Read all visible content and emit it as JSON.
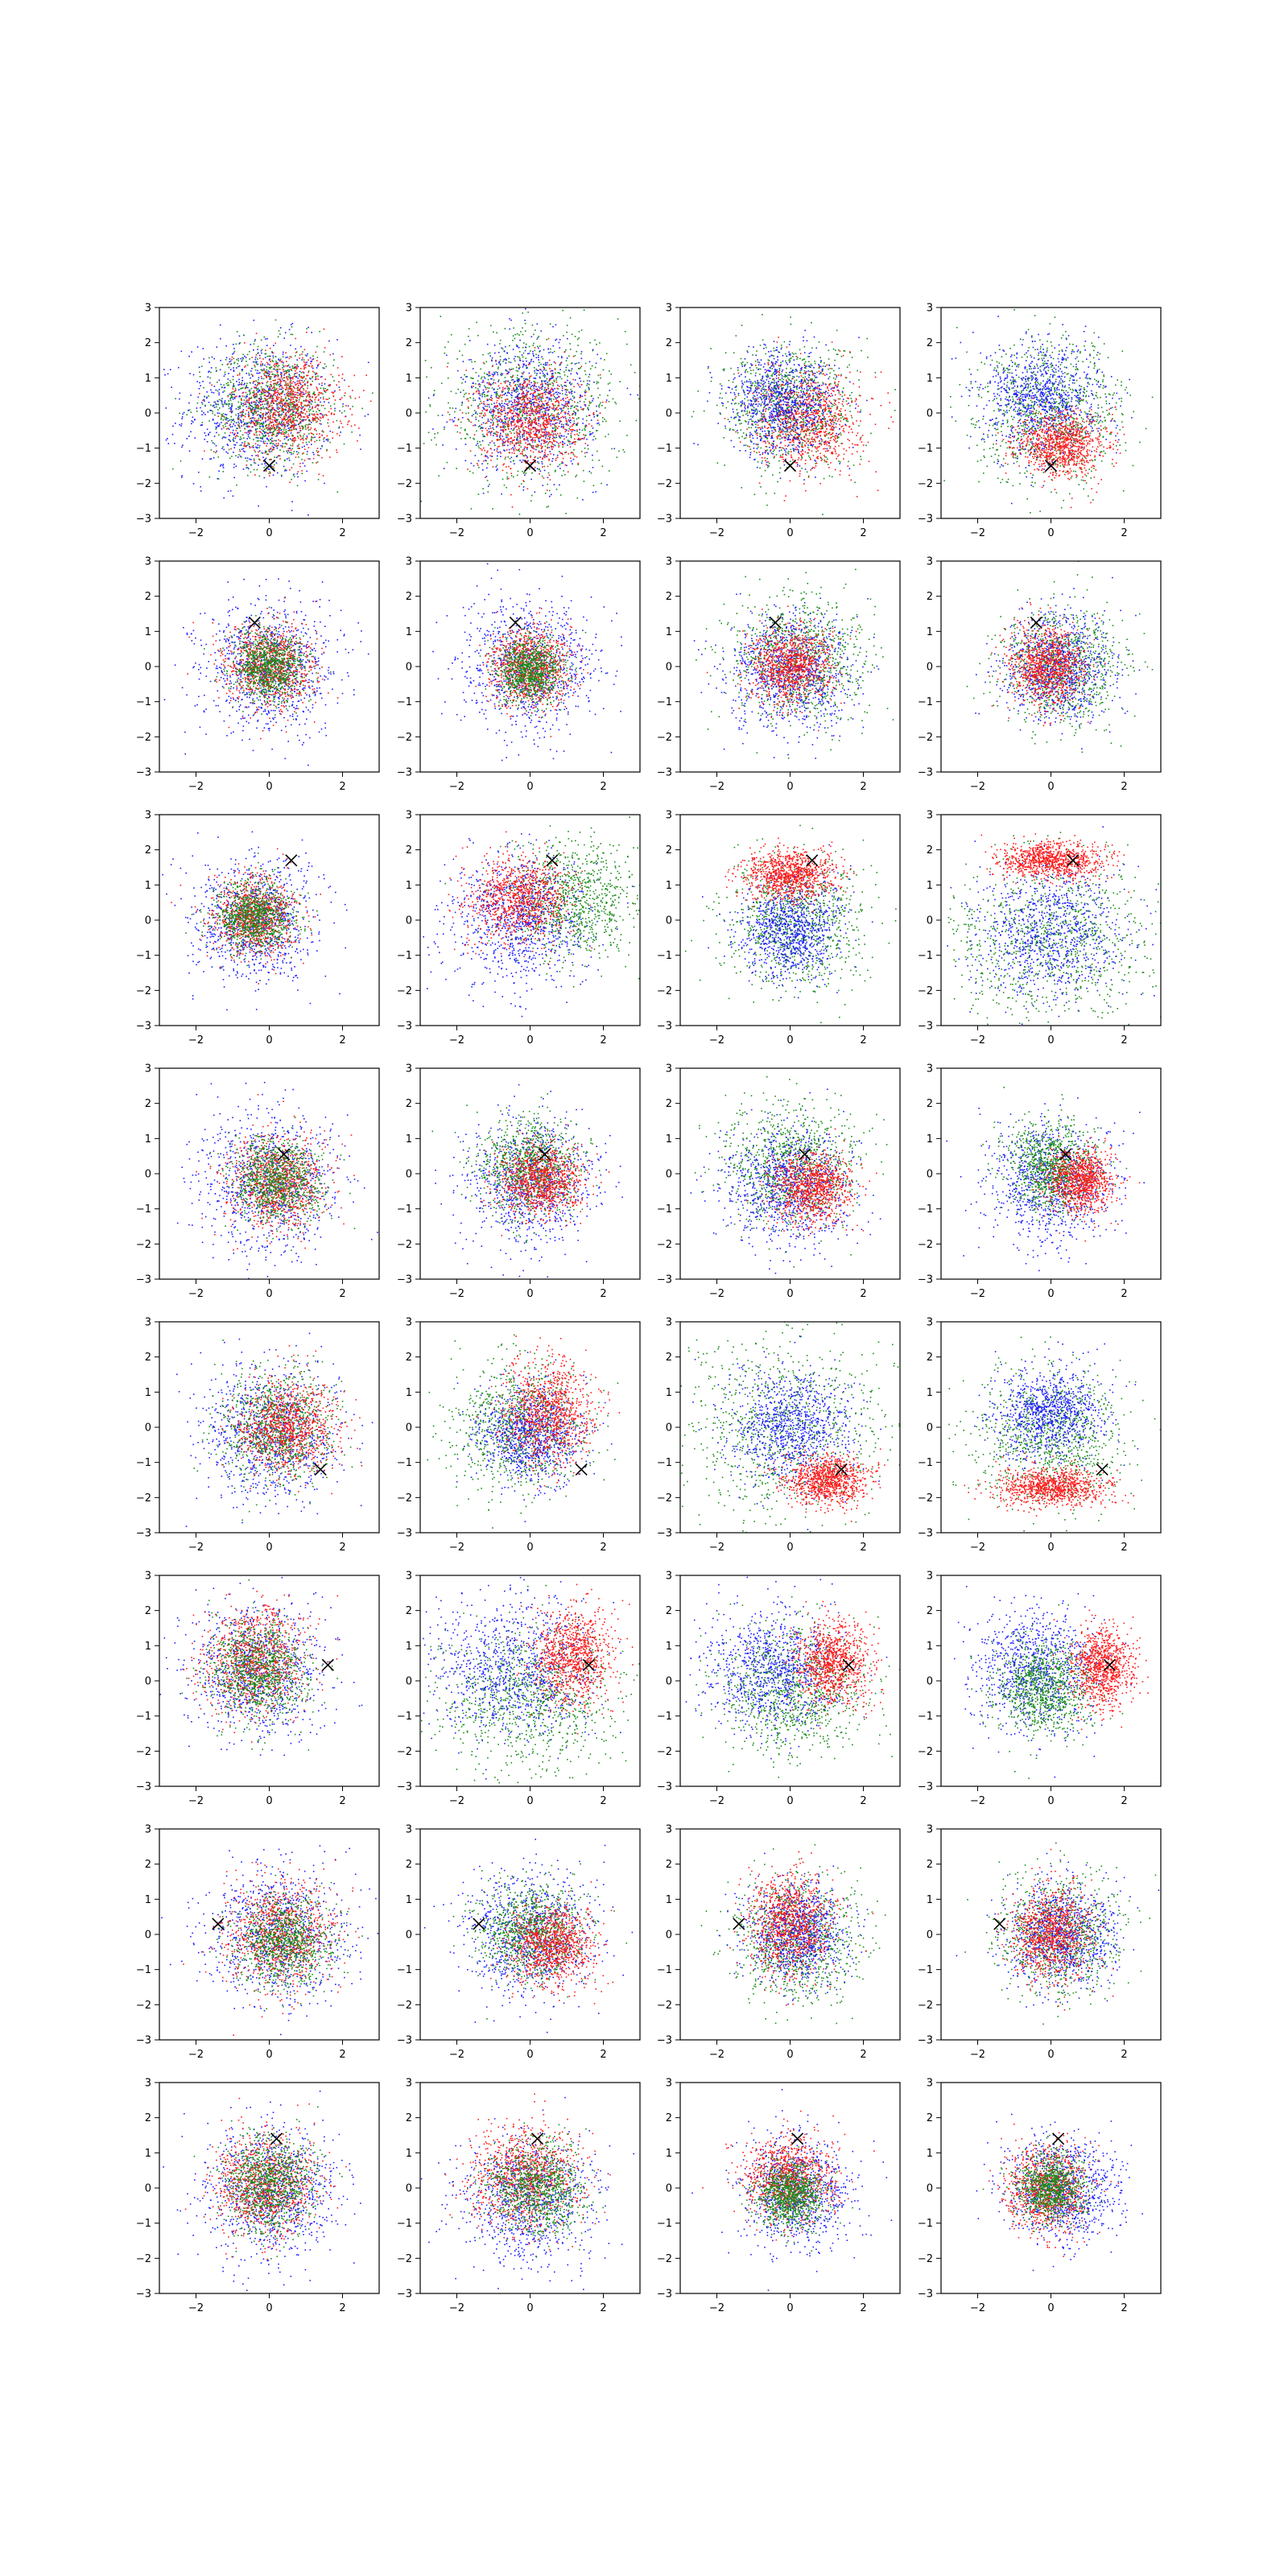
{
  "figure": {
    "rows": 8,
    "cols": 4,
    "background": "#ffffff"
  },
  "colors": {
    "blue": "#1f1fff",
    "green": "#1a8c1a",
    "red": "#ff1a1a",
    "marker": "#000000"
  },
  "chart_data": {
    "type": "scatter",
    "title": "",
    "xlabel": "",
    "ylabel": "",
    "xlim": [
      -3,
      3
    ],
    "ylim": [
      -3,
      3
    ],
    "xticks": [
      -2,
      0,
      2
    ],
    "yticks": [
      -3,
      -2,
      -1,
      0,
      1,
      2,
      3
    ],
    "xtick_labels": [
      "−2",
      "0",
      "2"
    ],
    "ytick_labels": [
      "−3",
      "−2",
      "−1",
      "0",
      "1",
      "2",
      "3"
    ],
    "grid": false,
    "legend": "none",
    "marker_symbol": "×",
    "points_per_series": 900,
    "panels": [
      {
        "row": 0,
        "col": 0,
        "marker": [
          0.0,
          -1.5
        ],
        "series": [
          {
            "color": "blue",
            "cx": -0.3,
            "cy": 0.1,
            "sx": 1.0,
            "sy": 1.0
          },
          {
            "color": "green",
            "cx": 0.1,
            "cy": 0.2,
            "sx": 0.85,
            "sy": 0.85
          },
          {
            "color": "red",
            "cx": 0.5,
            "cy": 0.2,
            "sx": 0.75,
            "sy": 0.75
          }
        ]
      },
      {
        "row": 0,
        "col": 1,
        "marker": [
          0.0,
          -1.5
        ],
        "series": [
          {
            "color": "green",
            "cx": 0.0,
            "cy": 0.2,
            "sx": 1.25,
            "sy": 1.1
          },
          {
            "color": "blue",
            "cx": 0.0,
            "cy": 0.2,
            "sx": 0.9,
            "sy": 0.9
          },
          {
            "color": "red",
            "cx": 0.0,
            "cy": -0.2,
            "sx": 0.7,
            "sy": 0.7
          }
        ]
      },
      {
        "row": 0,
        "col": 2,
        "marker": [
          0.0,
          -1.5
        ],
        "series": [
          {
            "color": "green",
            "cx": 0.0,
            "cy": 0.2,
            "sx": 0.9,
            "sy": 0.9
          },
          {
            "color": "red",
            "cx": 0.5,
            "cy": -0.2,
            "sx": 0.7,
            "sy": 0.7
          },
          {
            "color": "blue",
            "cx": -0.2,
            "cy": 0.3,
            "sx": 0.75,
            "sy": 0.75
          }
        ]
      },
      {
        "row": 0,
        "col": 3,
        "marker": [
          0.0,
          -1.5
        ],
        "series": [
          {
            "color": "green",
            "cx": 0.0,
            "cy": 0.0,
            "sx": 1.0,
            "sy": 1.0
          },
          {
            "color": "blue",
            "cx": -0.2,
            "cy": 0.4,
            "sx": 0.8,
            "sy": 0.8
          },
          {
            "color": "red",
            "cx": 0.3,
            "cy": -0.9,
            "sx": 0.6,
            "sy": 0.45
          }
        ]
      },
      {
        "row": 1,
        "col": 0,
        "marker": [
          -0.4,
          1.25
        ],
        "series": [
          {
            "color": "blue",
            "cx": 0.0,
            "cy": 0.0,
            "sx": 0.9,
            "sy": 0.9
          },
          {
            "color": "red",
            "cx": 0.0,
            "cy": 0.0,
            "sx": 0.6,
            "sy": 0.6
          },
          {
            "color": "green",
            "cx": 0.0,
            "cy": 0.0,
            "sx": 0.5,
            "sy": 0.5
          }
        ]
      },
      {
        "row": 1,
        "col": 1,
        "marker": [
          -0.4,
          1.25
        ],
        "series": [
          {
            "color": "blue",
            "cx": 0.0,
            "cy": 0.0,
            "sx": 0.9,
            "sy": 0.9
          },
          {
            "color": "red",
            "cx": 0.0,
            "cy": 0.0,
            "sx": 0.55,
            "sy": 0.55
          },
          {
            "color": "green",
            "cx": 0.0,
            "cy": -0.1,
            "sx": 0.45,
            "sy": 0.45
          }
        ]
      },
      {
        "row": 1,
        "col": 2,
        "marker": [
          -0.4,
          1.25
        ],
        "series": [
          {
            "color": "green",
            "cx": 0.2,
            "cy": 0.2,
            "sx": 0.9,
            "sy": 0.9
          },
          {
            "color": "blue",
            "cx": 0.0,
            "cy": -0.2,
            "sx": 0.85,
            "sy": 0.85
          },
          {
            "color": "red",
            "cx": 0.0,
            "cy": 0.0,
            "sx": 0.55,
            "sy": 0.55
          }
        ]
      },
      {
        "row": 1,
        "col": 3,
        "marker": [
          -0.4,
          1.25
        ],
        "series": [
          {
            "color": "green",
            "cx": 0.3,
            "cy": 0.0,
            "sx": 0.8,
            "sy": 0.8
          },
          {
            "color": "blue",
            "cx": 0.2,
            "cy": 0.0,
            "sx": 0.75,
            "sy": 0.75
          },
          {
            "color": "red",
            "cx": -0.1,
            "cy": 0.0,
            "sx": 0.5,
            "sy": 0.55
          }
        ]
      },
      {
        "row": 2,
        "col": 0,
        "marker": [
          0.6,
          1.7
        ],
        "series": [
          {
            "color": "blue",
            "cx": -0.4,
            "cy": 0.0,
            "sx": 0.85,
            "sy": 0.85
          },
          {
            "color": "red",
            "cx": -0.4,
            "cy": 0.1,
            "sx": 0.55,
            "sy": 0.55
          },
          {
            "color": "green",
            "cx": -0.4,
            "cy": 0.1,
            "sx": 0.5,
            "sy": 0.5
          }
        ]
      },
      {
        "row": 2,
        "col": 1,
        "marker": [
          0.6,
          1.7
        ],
        "series": [
          {
            "color": "green",
            "cx": 1.2,
            "cy": 0.5,
            "sx": 0.9,
            "sy": 0.8
          },
          {
            "color": "blue",
            "cx": -0.3,
            "cy": 0.0,
            "sx": 0.95,
            "sy": 0.95
          },
          {
            "color": "red",
            "cx": -0.3,
            "cy": 0.6,
            "sx": 0.7,
            "sy": 0.6
          }
        ]
      },
      {
        "row": 2,
        "col": 2,
        "marker": [
          0.6,
          1.7
        ],
        "series": [
          {
            "color": "green",
            "cx": 0.2,
            "cy": 0.0,
            "sx": 0.95,
            "sy": 0.95
          },
          {
            "color": "blue",
            "cx": 0.0,
            "cy": -0.3,
            "sx": 0.7,
            "sy": 0.7
          },
          {
            "color": "red",
            "cx": 0.0,
            "cy": 1.3,
            "sx": 0.6,
            "sy": 0.35
          }
        ]
      },
      {
        "row": 2,
        "col": 3,
        "marker": [
          0.6,
          1.7
        ],
        "series": [
          {
            "color": "green",
            "cx": 0.0,
            "cy": -0.5,
            "sx": 1.4,
            "sy": 1.1
          },
          {
            "color": "blue",
            "cx": 0.0,
            "cy": -0.3,
            "sx": 1.0,
            "sy": 0.95
          },
          {
            "color": "red",
            "cx": 0.0,
            "cy": 1.7,
            "sx": 0.7,
            "sy": 0.25
          }
        ]
      },
      {
        "row": 3,
        "col": 0,
        "marker": [
          0.4,
          0.55
        ],
        "series": [
          {
            "color": "blue",
            "cx": 0.0,
            "cy": -0.3,
            "sx": 0.95,
            "sy": 0.95
          },
          {
            "color": "red",
            "cx": 0.2,
            "cy": -0.3,
            "sx": 0.65,
            "sy": 0.65
          },
          {
            "color": "green",
            "cx": 0.2,
            "cy": -0.2,
            "sx": 0.6,
            "sy": 0.6
          }
        ]
      },
      {
        "row": 3,
        "col": 1,
        "marker": [
          0.4,
          0.55
        ],
        "series": [
          {
            "color": "blue",
            "cx": 0.0,
            "cy": -0.3,
            "sx": 0.9,
            "sy": 0.9
          },
          {
            "color": "green",
            "cx": 0.0,
            "cy": 0.2,
            "sx": 0.7,
            "sy": 0.7
          },
          {
            "color": "red",
            "cx": 0.3,
            "cy": -0.2,
            "sx": 0.55,
            "sy": 0.5
          }
        ]
      },
      {
        "row": 3,
        "col": 2,
        "marker": [
          0.4,
          0.55
        ],
        "series": [
          {
            "color": "green",
            "cx": 0.0,
            "cy": 0.2,
            "sx": 0.9,
            "sy": 0.85
          },
          {
            "color": "blue",
            "cx": 0.0,
            "cy": -0.4,
            "sx": 0.85,
            "sy": 0.85
          },
          {
            "color": "red",
            "cx": 0.6,
            "cy": -0.4,
            "sx": 0.55,
            "sy": 0.5
          }
        ]
      },
      {
        "row": 3,
        "col": 3,
        "marker": [
          0.4,
          0.55
        ],
        "series": [
          {
            "color": "blue",
            "cx": 0.0,
            "cy": -0.3,
            "sx": 0.85,
            "sy": 0.85
          },
          {
            "color": "green",
            "cx": 0.0,
            "cy": 0.2,
            "sx": 0.6,
            "sy": 0.6
          },
          {
            "color": "red",
            "cx": 0.8,
            "cy": -0.2,
            "sx": 0.45,
            "sy": 0.45
          }
        ]
      },
      {
        "row": 4,
        "col": 0,
        "marker": [
          1.4,
          -1.2
        ],
        "series": [
          {
            "color": "blue",
            "cx": 0.0,
            "cy": -0.2,
            "sx": 0.95,
            "sy": 0.95
          },
          {
            "color": "green",
            "cx": 0.2,
            "cy": 0.0,
            "sx": 0.75,
            "sy": 0.75
          },
          {
            "color": "red",
            "cx": 0.5,
            "cy": 0.0,
            "sx": 0.65,
            "sy": 0.65
          }
        ]
      },
      {
        "row": 4,
        "col": 1,
        "marker": [
          1.4,
          -1.2
        ],
        "series": [
          {
            "color": "green",
            "cx": -0.3,
            "cy": 0.0,
            "sx": 0.9,
            "sy": 0.9
          },
          {
            "color": "blue",
            "cx": 0.0,
            "cy": -0.2,
            "sx": 0.7,
            "sy": 0.7
          },
          {
            "color": "red",
            "cx": 0.5,
            "cy": 0.4,
            "sx": 0.6,
            "sy": 0.75
          }
        ]
      },
      {
        "row": 4,
        "col": 2,
        "marker": [
          1.4,
          -1.2
        ],
        "series": [
          {
            "color": "green",
            "cx": -0.2,
            "cy": 0.0,
            "sx": 1.4,
            "sy": 1.3
          },
          {
            "color": "blue",
            "cx": 0.0,
            "cy": 0.0,
            "sx": 0.85,
            "sy": 0.85
          },
          {
            "color": "red",
            "cx": 1.0,
            "cy": -1.5,
            "sx": 0.55,
            "sy": 0.35
          }
        ]
      },
      {
        "row": 4,
        "col": 3,
        "marker": [
          1.4,
          -1.2
        ],
        "series": [
          {
            "color": "green",
            "cx": 0.0,
            "cy": -0.3,
            "sx": 1.0,
            "sy": 1.0
          },
          {
            "color": "blue",
            "cx": 0.0,
            "cy": 0.4,
            "sx": 0.75,
            "sy": 0.65
          },
          {
            "color": "red",
            "cx": 0.0,
            "cy": -1.7,
            "sx": 0.75,
            "sy": 0.28
          }
        ]
      },
      {
        "row": 5,
        "col": 0,
        "marker": [
          1.6,
          0.45
        ],
        "series": [
          {
            "color": "blue",
            "cx": -0.3,
            "cy": 0.3,
            "sx": 0.95,
            "sy": 0.95
          },
          {
            "color": "red",
            "cx": -0.4,
            "cy": 0.6,
            "sx": 0.7,
            "sy": 0.75
          },
          {
            "color": "green",
            "cx": -0.3,
            "cy": 0.3,
            "sx": 0.65,
            "sy": 0.7
          }
        ]
      },
      {
        "row": 5,
        "col": 1,
        "marker": [
          1.6,
          0.45
        ],
        "series": [
          {
            "color": "green",
            "cx": 0.0,
            "cy": -0.5,
            "sx": 1.2,
            "sy": 1.0
          },
          {
            "color": "blue",
            "cx": -0.5,
            "cy": 0.3,
            "sx": 1.1,
            "sy": 1.0
          },
          {
            "color": "red",
            "cx": 1.2,
            "cy": 0.7,
            "sx": 0.55,
            "sy": 0.65
          }
        ]
      },
      {
        "row": 5,
        "col": 2,
        "marker": [
          1.6,
          0.45
        ],
        "series": [
          {
            "color": "green",
            "cx": 0.0,
            "cy": -0.3,
            "sx": 1.0,
            "sy": 0.9
          },
          {
            "color": "blue",
            "cx": -0.5,
            "cy": 0.3,
            "sx": 0.9,
            "sy": 0.85
          },
          {
            "color": "red",
            "cx": 1.2,
            "cy": 0.5,
            "sx": 0.5,
            "sy": 0.6
          }
        ]
      },
      {
        "row": 5,
        "col": 3,
        "marker": [
          1.6,
          0.45
        ],
        "series": [
          {
            "color": "blue",
            "cx": -0.4,
            "cy": 0.3,
            "sx": 0.85,
            "sy": 0.85
          },
          {
            "color": "green",
            "cx": -0.2,
            "cy": -0.2,
            "sx": 0.65,
            "sy": 0.65
          },
          {
            "color": "red",
            "cx": 1.4,
            "cy": 0.4,
            "sx": 0.4,
            "sy": 0.55
          }
        ]
      },
      {
        "row": 6,
        "col": 0,
        "marker": [
          -1.4,
          0.3
        ],
        "series": [
          {
            "color": "blue",
            "cx": 0.2,
            "cy": 0.0,
            "sx": 1.0,
            "sy": 0.95
          },
          {
            "color": "red",
            "cx": 0.3,
            "cy": 0.0,
            "sx": 0.7,
            "sy": 0.75
          },
          {
            "color": "green",
            "cx": 0.4,
            "cy": -0.2,
            "sx": 0.65,
            "sy": 0.6
          }
        ]
      },
      {
        "row": 6,
        "col": 1,
        "marker": [
          -1.4,
          0.3
        ],
        "series": [
          {
            "color": "blue",
            "cx": 0.0,
            "cy": 0.0,
            "sx": 0.9,
            "sy": 0.9
          },
          {
            "color": "green",
            "cx": 0.0,
            "cy": 0.1,
            "sx": 0.7,
            "sy": 0.7
          },
          {
            "color": "red",
            "cx": 0.6,
            "cy": -0.3,
            "sx": 0.6,
            "sy": 0.55
          }
        ]
      },
      {
        "row": 6,
        "col": 2,
        "marker": [
          -1.4,
          0.3
        ],
        "series": [
          {
            "color": "green",
            "cx": 0.2,
            "cy": -0.1,
            "sx": 0.85,
            "sy": 0.85
          },
          {
            "color": "blue",
            "cx": 0.2,
            "cy": 0.0,
            "sx": 0.7,
            "sy": 0.7
          },
          {
            "color": "red",
            "cx": 0.0,
            "cy": 0.3,
            "sx": 0.55,
            "sy": 0.75
          }
        ]
      },
      {
        "row": 6,
        "col": 3,
        "marker": [
          -1.4,
          0.3
        ],
        "series": [
          {
            "color": "green",
            "cx": 0.2,
            "cy": 0.0,
            "sx": 0.8,
            "sy": 0.8
          },
          {
            "color": "blue",
            "cx": 0.3,
            "cy": 0.0,
            "sx": 0.75,
            "sy": 0.75
          },
          {
            "color": "red",
            "cx": 0.0,
            "cy": 0.0,
            "sx": 0.55,
            "sy": 0.65
          }
        ]
      },
      {
        "row": 7,
        "col": 0,
        "marker": [
          0.2,
          1.4
        ],
        "series": [
          {
            "color": "blue",
            "cx": 0.0,
            "cy": -0.1,
            "sx": 0.95,
            "sy": 0.95
          },
          {
            "color": "red",
            "cx": -0.1,
            "cy": 0.1,
            "sx": 0.7,
            "sy": 0.7
          },
          {
            "color": "green",
            "cx": 0.0,
            "cy": 0.1,
            "sx": 0.6,
            "sy": 0.65
          }
        ]
      },
      {
        "row": 7,
        "col": 1,
        "marker": [
          0.2,
          1.4
        ],
        "series": [
          {
            "color": "blue",
            "cx": 0.0,
            "cy": -0.3,
            "sx": 0.95,
            "sy": 0.9
          },
          {
            "color": "red",
            "cx": -0.1,
            "cy": 0.3,
            "sx": 0.75,
            "sy": 0.7
          },
          {
            "color": "green",
            "cx": 0.2,
            "cy": 0.0,
            "sx": 0.65,
            "sy": 0.65
          }
        ]
      },
      {
        "row": 7,
        "col": 2,
        "marker": [
          0.2,
          1.4
        ],
        "series": [
          {
            "color": "blue",
            "cx": 0.2,
            "cy": -0.1,
            "sx": 0.75,
            "sy": 0.75
          },
          {
            "color": "red",
            "cx": 0.0,
            "cy": 0.3,
            "sx": 0.6,
            "sy": 0.6
          },
          {
            "color": "green",
            "cx": 0.0,
            "cy": -0.2,
            "sx": 0.45,
            "sy": 0.45
          }
        ]
      },
      {
        "row": 7,
        "col": 3,
        "marker": [
          0.2,
          1.4
        ],
        "series": [
          {
            "color": "blue",
            "cx": 0.4,
            "cy": 0.0,
            "sx": 0.75,
            "sy": 0.75
          },
          {
            "color": "red",
            "cx": -0.1,
            "cy": 0.0,
            "sx": 0.55,
            "sy": 0.6
          },
          {
            "color": "green",
            "cx": 0.0,
            "cy": 0.0,
            "sx": 0.45,
            "sy": 0.45
          }
        ]
      }
    ]
  }
}
